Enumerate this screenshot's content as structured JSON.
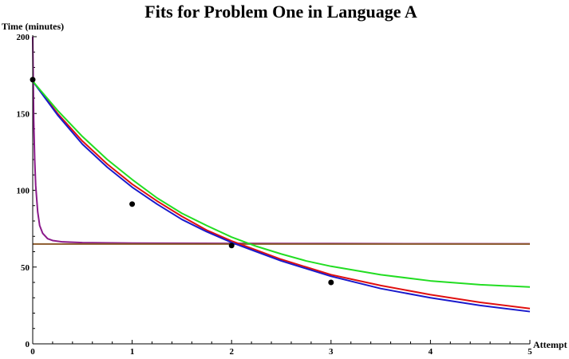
{
  "chart_data": {
    "type": "scatter",
    "title": "Fits for Problem One in Language A",
    "xlabel": "Attempt",
    "ylabel": "Time (minutes)",
    "xlim": [
      0,
      5
    ],
    "ylim": [
      0,
      200
    ],
    "xticks": [
      "0",
      "1",
      "2",
      "3",
      "4",
      "5"
    ],
    "yticks": [
      "0",
      "50",
      "100",
      "150",
      "200"
    ],
    "grid": false,
    "points": [
      {
        "x": 0,
        "y": 172
      },
      {
        "x": 1,
        "y": 91
      },
      {
        "x": 2,
        "y": 64
      },
      {
        "x": 3,
        "y": 40
      }
    ],
    "curves": [
      {
        "color": "#8b1a8b",
        "points": [
          [
            0,
            200
          ],
          [
            0.01,
            146
          ],
          [
            0.02,
            120
          ],
          [
            0.03,
            103
          ],
          [
            0.05,
            86
          ],
          [
            0.07,
            77
          ],
          [
            0.1,
            72
          ],
          [
            0.15,
            68.5
          ],
          [
            0.2,
            67.3
          ],
          [
            0.3,
            66.4
          ],
          [
            0.5,
            65.9
          ],
          [
            1,
            65.6
          ],
          [
            2,
            65.4
          ],
          [
            3,
            65.3
          ],
          [
            4,
            65.2
          ],
          [
            5,
            65.1
          ]
        ]
      },
      {
        "color": "#8b5a2b",
        "points": [
          [
            0,
            65
          ],
          [
            5,
            65
          ]
        ]
      },
      {
        "color": "#e01010",
        "points": [
          [
            0,
            171
          ],
          [
            0.25,
            150
          ],
          [
            0.5,
            132
          ],
          [
            0.75,
            117
          ],
          [
            1,
            104
          ],
          [
            1.25,
            93
          ],
          [
            1.5,
            83
          ],
          [
            1.75,
            74
          ],
          [
            2,
            67
          ],
          [
            2.25,
            61
          ],
          [
            2.5,
            55
          ],
          [
            2.75,
            50
          ],
          [
            3,
            45
          ],
          [
            3.5,
            38
          ],
          [
            4,
            32
          ],
          [
            4.5,
            27
          ],
          [
            5,
            23
          ]
        ]
      },
      {
        "color": "#1a1acc",
        "points": [
          [
            0,
            171
          ],
          [
            0.25,
            149
          ],
          [
            0.5,
            130
          ],
          [
            0.75,
            115
          ],
          [
            1,
            102
          ],
          [
            1.25,
            91
          ],
          [
            1.5,
            81
          ],
          [
            1.75,
            73
          ],
          [
            2,
            66
          ],
          [
            2.25,
            60
          ],
          [
            2.5,
            54
          ],
          [
            2.75,
            49
          ],
          [
            3,
            44
          ],
          [
            3.5,
            36
          ],
          [
            4,
            30
          ],
          [
            4.5,
            25
          ],
          [
            5,
            21
          ]
        ]
      },
      {
        "color": "#22dd22",
        "points": [
          [
            0,
            171
          ],
          [
            0.25,
            152
          ],
          [
            0.5,
            135
          ],
          [
            0.75,
            120
          ],
          [
            1,
            107
          ],
          [
            1.25,
            95
          ],
          [
            1.5,
            85
          ],
          [
            1.75,
            77
          ],
          [
            2,
            69.5
          ],
          [
            2.25,
            63.5
          ],
          [
            2.5,
            58.5
          ],
          [
            2.75,
            54
          ],
          [
            3,
            50.5
          ],
          [
            3.5,
            45
          ],
          [
            4,
            41
          ],
          [
            4.5,
            38.5
          ],
          [
            5,
            37
          ]
        ]
      }
    ]
  }
}
